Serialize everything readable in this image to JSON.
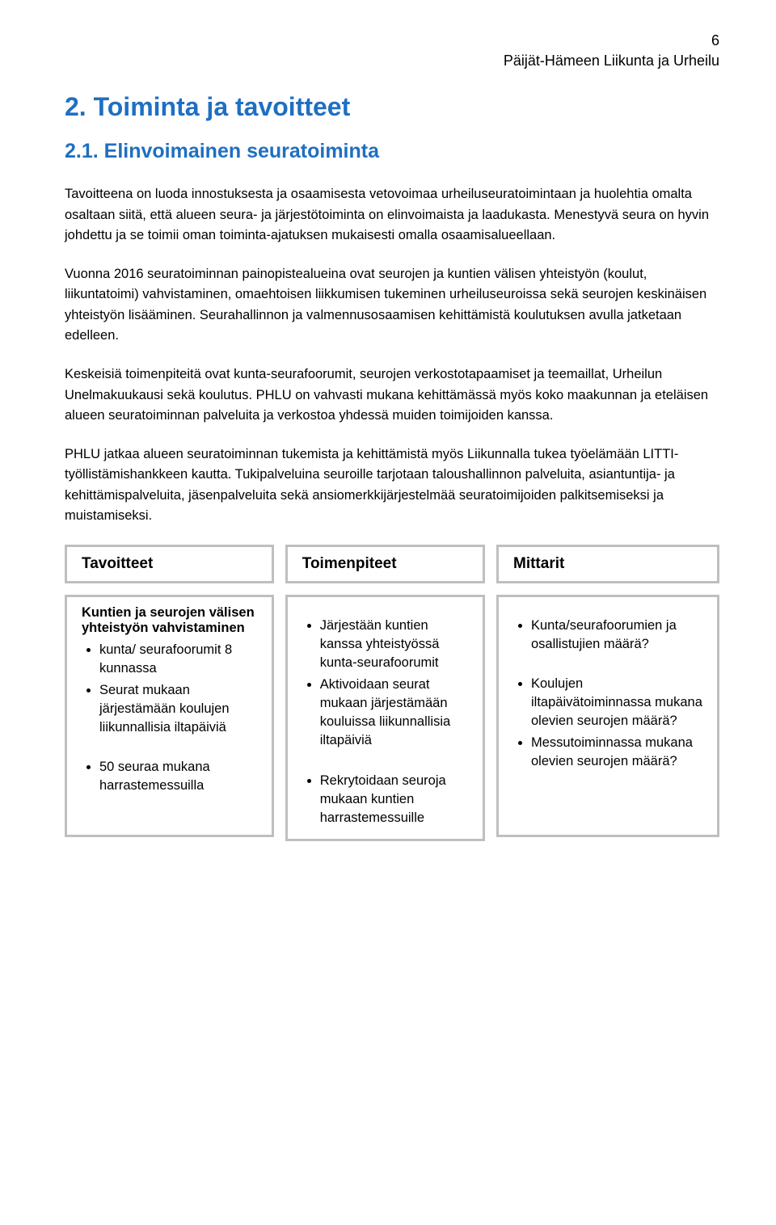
{
  "page_number": "6",
  "header_org": "Päijät-Hämeen Liikunta ja Urheilu",
  "h1": "2. Toiminta ja tavoitteet",
  "h2": "2.1. Elinvoimainen seuratoiminta",
  "paragraphs": {
    "p1": "Tavoitteena on luoda innostuksesta ja osaamisesta vetovoimaa urheiluseuratoimintaan ja huolehtia omalta osaltaan siitä, että alueen seura- ja järjestötoiminta on elinvoimaista ja laadukasta. Menestyvä seura on hyvin johdettu ja se toimii oman toiminta-ajatuksen mukaisesti omalla osaamisalueellaan.",
    "p2": "Vuonna 2016 seuratoiminnan painopistealueina ovat seurojen ja kuntien välisen yhteistyön (koulut, liikuntatoimi) vahvistaminen, omaehtoisen liikkumisen tukeminen urheiluseuroissa sekä seurojen keskinäisen yhteistyön lisääminen. Seurahallinnon ja valmennusosaamisen kehittämistä koulutuksen avulla jatketaan edelleen.",
    "p3": "Keskeisiä toimenpiteitä ovat kunta-seurafoorumit, seurojen verkostotapaamiset ja teemaillat, Urheilun Unelmakuukausi sekä koulutus. PHLU on vahvasti mukana kehittämässä myös koko maakunnan ja eteläisen alueen seuratoiminnan palveluita ja verkostoa yhdessä muiden toimijoiden kanssa.",
    "p4": "PHLU jatkaa alueen seuratoiminnan tukemista ja kehittämistä myös Liikunnalla tukea työelämään LITTI-työllistämishankkeen kautta. Tukipalveluina seuroille tarjotaan taloushallinnon palveluita, asiantuntija- ja kehittämispalveluita, jäsenpalveluita sekä ansiomerkkijärjestelmää seuratoimijoiden palkitsemiseksi ja muistamiseksi."
  },
  "table": {
    "headers": {
      "c1": "Tavoitteet",
      "c2": "Toimenpiteet",
      "c3": "Mittarit"
    },
    "goals": {
      "title": "Kuntien ja seurojen välisen yhteistyön vahvistaminen",
      "items": {
        "i1": "kunta/ seurafoorumit 8 kunnassa",
        "i2": "Seurat mukaan järjestämään koulujen liikunnallisia iltapäiviä",
        "i3": "50 seuraa mukana harrastemessuilla"
      }
    },
    "actions": {
      "i1": "Järjestään kuntien kanssa yhteistyössä kunta-seurafoorumit",
      "i2": "Aktivoidaan seurat mukaan järjestämään kouluissa liikunnallisia iltapäiviä",
      "i3": "Rekrytoidaan seuroja mukaan kuntien harrastemessuille"
    },
    "metrics": {
      "i1": "Kunta/seurafoorumien ja osallistujien määrä?",
      "i2": "Koulujen iltapäivätoiminnassa mukana olevien seurojen määrä?",
      "i3": "Messutoiminnassa mukana olevien seurojen määrä?"
    }
  },
  "colors": {
    "heading": "#1f6fc2",
    "border": "#bfbfbf",
    "text": "#000000",
    "background": "#ffffff"
  }
}
